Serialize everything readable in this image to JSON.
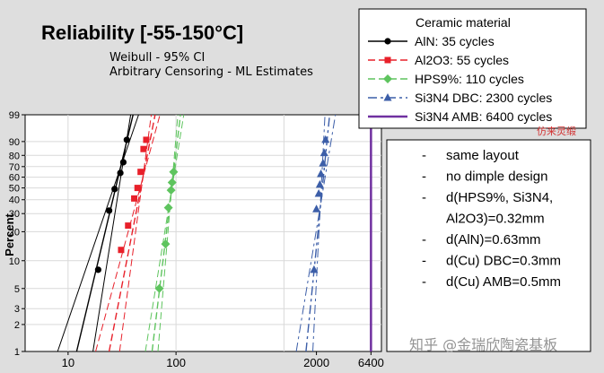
{
  "chart_data": {
    "type": "scatter",
    "title": "Reliability [-55-150°C]",
    "subtitle_lines": [
      "Weibull - 95% CI",
      "Arbitrary Censoring - ML Estimates"
    ],
    "ylabel": "Percent",
    "x_scale": "log",
    "y_scale": "weibull-probability",
    "xlim": [
      4,
      8000
    ],
    "ylim": [
      1,
      99
    ],
    "x_ticks": [
      "10",
      "100",
      "2000",
      "6400"
    ],
    "x_tick_values": [
      10,
      100,
      2000,
      6400
    ],
    "y_ticks": [
      "1",
      "2",
      "3",
      "5",
      "10",
      "20",
      "30",
      "40",
      "50",
      "60",
      "70",
      "80",
      "90",
      "99"
    ],
    "y_tick_values": [
      1,
      2,
      3,
      5,
      10,
      20,
      30,
      40,
      50,
      60,
      70,
      80,
      90,
      99
    ],
    "grid": true,
    "legend_position": "top-right",
    "legend_title": "Ceramic material",
    "series": [
      {
        "name": "AlN: 35 cycles",
        "color": "#000000",
        "marker": "circle",
        "dash": "solid",
        "points": [
          [
            19,
            8
          ],
          [
            24,
            32
          ],
          [
            27,
            49
          ],
          [
            30.5,
            64
          ],
          [
            32.5,
            74
          ],
          [
            35,
            91
          ]
        ],
        "fit": [
          [
            12,
            1
          ],
          [
            40,
            99
          ]
        ],
        "ci_low": [
          [
            8,
            1
          ],
          [
            45,
            99
          ]
        ],
        "ci_high": [
          [
            17,
            1
          ],
          [
            38,
            99
          ]
        ]
      },
      {
        "name": "Al2O3: 55 cycles",
        "color": "#e8202a",
        "marker": "square",
        "dash": "dashed",
        "points": [
          [
            31,
            13
          ],
          [
            36,
            23
          ],
          [
            41,
            41
          ],
          [
            44,
            50
          ],
          [
            47,
            65
          ],
          [
            50,
            85
          ],
          [
            53,
            91
          ]
        ],
        "fit": [
          [
            24,
            1
          ],
          [
            64,
            99
          ]
        ],
        "ci_low": [
          [
            18,
            1
          ],
          [
            71,
            99
          ]
        ],
        "ci_high": [
          [
            30,
            1
          ],
          [
            59,
            99
          ]
        ]
      },
      {
        "name": "HPS9%: 110 cycles",
        "color": "#5ec45e",
        "marker": "diamond",
        "dash": "dashed",
        "points": [
          [
            70,
            5
          ],
          [
            80,
            15
          ],
          [
            85,
            34
          ],
          [
            90,
            48
          ],
          [
            92,
            55
          ],
          [
            95,
            65
          ]
        ],
        "fit": [
          [
            60,
            1
          ],
          [
            110,
            99
          ]
        ],
        "ci_low": [
          [
            52,
            1
          ],
          [
            118,
            99
          ]
        ],
        "ci_high": [
          [
            68,
            1
          ],
          [
            104,
            99
          ]
        ]
      },
      {
        "name": "Si3N4 DBC: 2300 cycles",
        "color": "#3c5ea8",
        "marker": "triangle",
        "dash": "dashdot",
        "points": [
          [
            1900,
            8
          ],
          [
            2000,
            33
          ],
          [
            2100,
            45
          ],
          [
            2150,
            53
          ],
          [
            2200,
            63
          ],
          [
            2300,
            73
          ],
          [
            2360,
            82
          ],
          [
            2430,
            91
          ]
        ],
        "fit": [
          [
            1600,
            1
          ],
          [
            2650,
            99
          ]
        ],
        "ci_low": [
          [
            1300,
            1
          ],
          [
            3000,
            99
          ]
        ],
        "ci_high": [
          [
            1850,
            1
          ],
          [
            2400,
            99
          ]
        ]
      },
      {
        "name": "Si3N4 AMB: 6400 cycles",
        "color": "#7030a0",
        "marker": "none",
        "dash": "solid",
        "vertical_at": 6400
      }
    ]
  },
  "notes": {
    "items": [
      "same layout",
      "no dimple design",
      "d(HPS9%, Si3N4,",
      "Al2O3)=0.32mm",
      "d(AlN)=0.63mm",
      "d(Cu) DBC=0.3mm",
      "d(Cu) AMB=0.5mm"
    ],
    "bullet": "-"
  },
  "stamp_text": "仿来灵缎",
  "watermark": "知乎 @金瑞欣陶瓷基板"
}
